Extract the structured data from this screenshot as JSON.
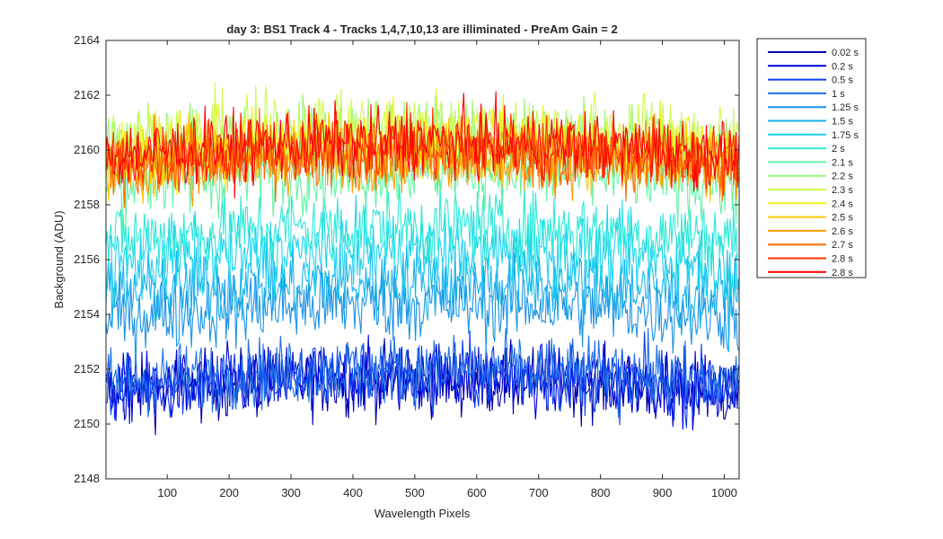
{
  "chart_data": {
    "type": "line",
    "title": "day 3: BS1  Track 4 - Tracks 1,4,7,10,13 are illiminated - PreAm Gain = 2",
    "xlabel": "Wavelength Pixels",
    "ylabel": "Background (ADU)",
    "xlim": [
      1,
      1024
    ],
    "ylim": [
      2148,
      2164
    ],
    "x_ticks": [
      100,
      200,
      300,
      400,
      500,
      600,
      700,
      800,
      900,
      1000
    ],
    "y_ticks": [
      2148,
      2150,
      2152,
      2154,
      2156,
      2158,
      2160,
      2162,
      2164
    ],
    "grid": false,
    "legend_position": "outside-top-right",
    "series": [
      {
        "name": "0.02 s",
        "color": "#0000AA",
        "mean": 2151.6,
        "noise": 0.9
      },
      {
        "name": "0.2 s",
        "color": "#0000DD",
        "mean": 2151.7,
        "noise": 0.9
      },
      {
        "name": "0.5 s",
        "color": "#0B3CF0",
        "mean": 2151.8,
        "noise": 0.9
      },
      {
        "name": "1 s",
        "color": "#1E6FE8",
        "mean": 2152.0,
        "noise": 0.9
      },
      {
        "name": "1.25 s",
        "color": "#1A93E6",
        "mean": 2154.4,
        "noise": 1.0
      },
      {
        "name": "1.5 s",
        "color": "#1BB3EA",
        "mean": 2155.2,
        "noise": 1.0
      },
      {
        "name": "1.75 s",
        "color": "#19D2F2",
        "mean": 2156.3,
        "noise": 1.0
      },
      {
        "name": "2 s",
        "color": "#2EE8D8",
        "mean": 2157.2,
        "noise": 1.0
      },
      {
        "name": "2.1 s",
        "color": "#66F2A6",
        "mean": 2159.3,
        "noise": 1.0
      },
      {
        "name": "2.2 s",
        "color": "#99F77A",
        "mean": 2160.5,
        "noise": 1.0
      },
      {
        "name": "2.3 s",
        "color": "#CCFA4D",
        "mean": 2160.8,
        "noise": 1.0
      },
      {
        "name": "2.4 s",
        "color": "#F2F21A",
        "mean": 2160.3,
        "noise": 0.9
      },
      {
        "name": "2.5 s",
        "color": "#FFC800",
        "mean": 2160.0,
        "noise": 0.9
      },
      {
        "name": "2.6 s",
        "color": "#FF9A00",
        "mean": 2159.8,
        "noise": 0.9
      },
      {
        "name": "2.7 s",
        "color": "#FF6A00",
        "mean": 2159.9,
        "noise": 0.9
      },
      {
        "name": "2.8 s",
        "color": "#FF3300",
        "mean": 2160.1,
        "noise": 0.9
      },
      {
        "name": "2.8 s",
        "color": "#FF0000",
        "mean": 2160.3,
        "noise": 0.9
      }
    ]
  }
}
